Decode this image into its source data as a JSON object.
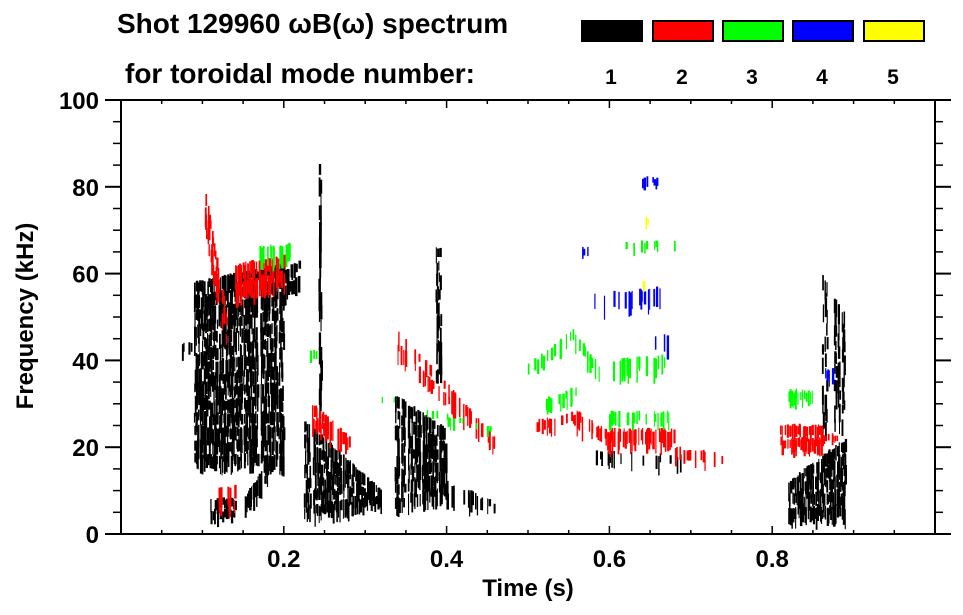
{
  "chart_data": {
    "type": "heatmap",
    "title_line1": "Shot 129960 ωB(ω) spectrum",
    "title_line2": "for toroidal mode number:",
    "xlabel": "Time (s)",
    "ylabel": "Frequency (kHz)",
    "xlim": [
      0.0,
      1.0
    ],
    "ylim": [
      0,
      100
    ],
    "x_ticks": [
      0.2,
      0.4,
      0.6,
      0.8
    ],
    "x_tick_labels": [
      "0.2",
      "0.4",
      "0.6",
      "0.8"
    ],
    "x_minor_step": 0.05,
    "y_ticks": [
      0,
      20,
      40,
      60,
      80,
      100
    ],
    "y_tick_labels": [
      "0",
      "20",
      "40",
      "60",
      "80",
      "100"
    ],
    "y_minor_step": 5,
    "legend": {
      "placement": "top-right",
      "entries": [
        {
          "mode": "1",
          "color": "#000000"
        },
        {
          "mode": "2",
          "color": "#ff0000"
        },
        {
          "mode": "3",
          "color": "#00ff00"
        },
        {
          "mode": "4",
          "color": "#0000ff"
        },
        {
          "mode": "5",
          "color": "#ffff00"
        }
      ]
    },
    "series": [
      {
        "name": "n=1",
        "color": "#000000",
        "features": [
          {
            "t": [
              0.09,
              0.2
            ],
            "f0": [
              15,
              15
            ],
            "f1": [
              58,
              62
            ],
            "density": 0.9
          },
          {
            "t": [
              0.2,
              0.22
            ],
            "f0": [
              54,
              57
            ],
            "f1": [
              61,
              63
            ],
            "density": 0.9
          },
          {
            "t": [
              0.07,
              0.09
            ],
            "f0": [
              41,
              41
            ],
            "f1": [
              44,
              44
            ],
            "density": 0.5
          },
          {
            "t": [
              0.11,
              0.14
            ],
            "f0": [
              3,
              3
            ],
            "f1": [
              8,
              8
            ],
            "density": 0.8
          },
          {
            "t": [
              0.15,
              0.18
            ],
            "f0": [
              4,
              12
            ],
            "f1": [
              8,
              17
            ],
            "density": 0.8
          },
          {
            "t": [
              0.225,
              0.32
            ],
            "f0": [
              3,
              6
            ],
            "f1": [
              26,
              10
            ],
            "density": 0.95
          },
          {
            "t": [
              0.243,
              0.247
            ],
            "f0": [
              24,
              24
            ],
            "f1": [
              85,
              85
            ],
            "density": 0.6
          },
          {
            "t": [
              0.335,
              0.4
            ],
            "f0": [
              5,
              8
            ],
            "f1": [
              32,
              24
            ],
            "density": 0.9
          },
          {
            "t": [
              0.4,
              0.46
            ],
            "f0": [
              7,
              5
            ],
            "f1": [
              12,
              7
            ],
            "density": 0.4
          },
          {
            "t": [
              0.387,
              0.392
            ],
            "f0": [
              35,
              35
            ],
            "f1": [
              66,
              66
            ],
            "density": 0.5
          },
          {
            "t": [
              0.58,
              0.7
            ],
            "f0": [
              16,
              15
            ],
            "f1": [
              19,
              18
            ],
            "density": 0.35
          },
          {
            "t": [
              0.82,
              0.89
            ],
            "f0": [
              3,
              3
            ],
            "f1": [
              12,
              22
            ],
            "density": 0.95
          },
          {
            "t": [
              0.86,
              0.89
            ],
            "f0": [
              22,
              24
            ],
            "f1": [
              60,
              50
            ],
            "density": 0.35
          }
        ]
      },
      {
        "name": "n=2",
        "color": "#ff0000",
        "features": [
          {
            "t": [
              0.1,
              0.13
            ],
            "f0": [
              72,
              42
            ],
            "f1": [
              82,
              50
            ],
            "density": 0.7
          },
          {
            "t": [
              0.14,
              0.2
            ],
            "f0": [
              54,
              57
            ],
            "f1": [
              62,
              64
            ],
            "density": 0.85
          },
          {
            "t": [
              0.235,
              0.28
            ],
            "f0": [
              24,
              19
            ],
            "f1": [
              30,
              22
            ],
            "density": 0.8
          },
          {
            "t": [
              0.34,
              0.46
            ],
            "f0": [
              40,
              19
            ],
            "f1": [
              47,
              22
            ],
            "density": 0.6
          },
          {
            "t": [
              0.51,
              0.56
            ],
            "f0": [
              23,
              25
            ],
            "f1": [
              26,
              28
            ],
            "density": 0.6
          },
          {
            "t": [
              0.56,
              0.6
            ],
            "f0": [
              24,
              20
            ],
            "f1": [
              28,
              23
            ],
            "density": 0.7
          },
          {
            "t": [
              0.6,
              0.68
            ],
            "f0": [
              20,
              20
            ],
            "f1": [
              24,
              24
            ],
            "density": 0.8
          },
          {
            "t": [
              0.68,
              0.75
            ],
            "f0": [
              17,
              15
            ],
            "f1": [
              20,
              18
            ],
            "density": 0.35
          },
          {
            "t": [
              0.81,
              0.86
            ],
            "f0": [
              19,
              19
            ],
            "f1": [
              25,
              25
            ],
            "density": 0.95
          },
          {
            "t": [
              0.86,
              0.88
            ],
            "f0": [
              21,
              21
            ],
            "f1": [
              23,
              23
            ],
            "density": 0.8
          },
          {
            "t": [
              0.12,
              0.14
            ],
            "f0": [
              5,
              5
            ],
            "f1": [
              11,
              11
            ],
            "density": 0.3
          }
        ]
      },
      {
        "name": "n=3",
        "color": "#00ff00",
        "features": [
          {
            "t": [
              0.17,
              0.21
            ],
            "f0": [
              62,
              63
            ],
            "f1": [
              66,
              67
            ],
            "density": 0.7
          },
          {
            "t": [
              0.23,
              0.24
            ],
            "f0": [
              40,
              40
            ],
            "f1": [
              42,
              42
            ],
            "density": 0.6
          },
          {
            "t": [
              0.32,
              0.46
            ],
            "f0": [
              30,
              22
            ],
            "f1": [
              32,
              24
            ],
            "density": 0.3
          },
          {
            "t": [
              0.5,
              0.555
            ],
            "f0": [
              36,
              44
            ],
            "f1": [
              39,
              47
            ],
            "density": 0.55
          },
          {
            "t": [
              0.555,
              0.59
            ],
            "f0": [
              43,
              35
            ],
            "f1": [
              47,
              38
            ],
            "density": 0.55
          },
          {
            "t": [
              0.6,
              0.67
            ],
            "f0": [
              36,
              37
            ],
            "f1": [
              40,
              41
            ],
            "density": 0.6
          },
          {
            "t": [
              0.52,
              0.56
            ],
            "f0": [
              28,
              31
            ],
            "f1": [
              31,
              34
            ],
            "density": 0.55
          },
          {
            "t": [
              0.6,
              0.68
            ],
            "f0": [
              25,
              25
            ],
            "f1": [
              28,
              28
            ],
            "density": 0.4
          },
          {
            "t": [
              0.62,
              0.68
            ],
            "f0": [
              65,
              66
            ],
            "f1": [
              67,
              68
            ],
            "density": 0.3
          },
          {
            "t": [
              0.82,
              0.85
            ],
            "f0": [
              30,
              30
            ],
            "f1": [
              33,
              33
            ],
            "density": 0.9
          }
        ]
      },
      {
        "name": "n=4",
        "color": "#0000ff",
        "features": [
          {
            "t": [
              0.58,
              0.67
            ],
            "f0": [
              51,
              53
            ],
            "f1": [
              55,
              57
            ],
            "density": 0.45
          },
          {
            "t": [
              0.64,
              0.66
            ],
            "f0": [
              80,
              80
            ],
            "f1": [
              82,
              82
            ],
            "density": 0.5
          },
          {
            "t": [
              0.565,
              0.575
            ],
            "f0": [
              64,
              64
            ],
            "f1": [
              66,
              66
            ],
            "density": 0.4
          },
          {
            "t": [
              0.63,
              0.67
            ],
            "f0": [
              42,
              42
            ],
            "f1": [
              46,
              46
            ],
            "density": 0.3
          },
          {
            "t": [
              0.865,
              0.875
            ],
            "f0": [
              35,
              35
            ],
            "f1": [
              38,
              38
            ],
            "density": 0.7
          }
        ]
      },
      {
        "name": "n=5",
        "color": "#ffff00",
        "features": [
          {
            "t": [
              0.645,
              0.648
            ],
            "f0": [
              71,
              71
            ],
            "f1": [
              73,
              73
            ],
            "density": 0.8
          },
          {
            "t": [
              0.64,
              0.643
            ],
            "f0": [
              56,
              56
            ],
            "f1": [
              58,
              58
            ],
            "density": 0.8
          }
        ]
      }
    ]
  }
}
